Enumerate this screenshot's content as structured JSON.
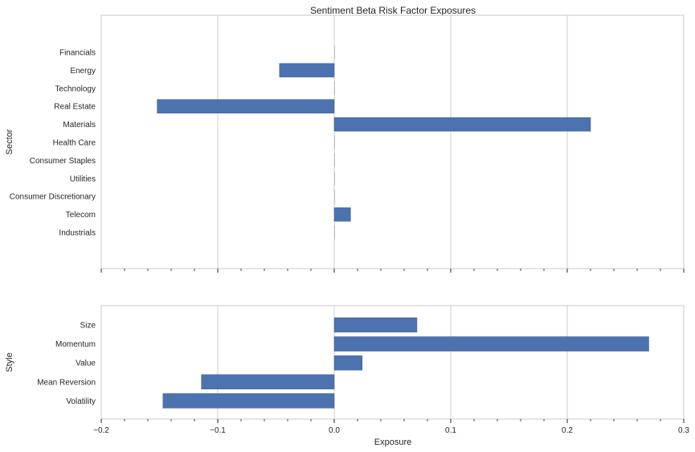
{
  "chart_data": {
    "type": "bar",
    "orientation": "horizontal",
    "title": "Sentiment Beta Risk Factor Exposures",
    "xlabel": "Exposure",
    "xlim": [
      -0.2,
      0.3
    ],
    "xticks": [
      -0.2,
      -0.1,
      0.0,
      0.1,
      0.2,
      0.3
    ],
    "xtick_labels": [
      "−0.2",
      "−0.1",
      "0.0",
      "0.1",
      "0.2",
      "0.3"
    ],
    "grid": true,
    "bar_color": "#4c72b0",
    "panels": [
      {
        "id": "sector",
        "ylabel": "Sector",
        "categories": [
          "Financials",
          "Energy",
          "Technology",
          "Real Estate",
          "Materials",
          "Health Care",
          "Consumer Staples",
          "Utilities",
          "Consumer Discretionary",
          "Telecom",
          "Industrials"
        ],
        "values": [
          0.0,
          -0.047,
          0.0,
          -0.152,
          0.22,
          0.0,
          0.0,
          0.0,
          0.0,
          0.014,
          0.0
        ]
      },
      {
        "id": "style",
        "ylabel": "Style",
        "categories": [
          "Size",
          "Momentum",
          "Value",
          "Mean Reversion",
          "Volatility"
        ],
        "values": [
          0.071,
          0.27,
          0.024,
          -0.114,
          -0.147
        ]
      }
    ]
  }
}
